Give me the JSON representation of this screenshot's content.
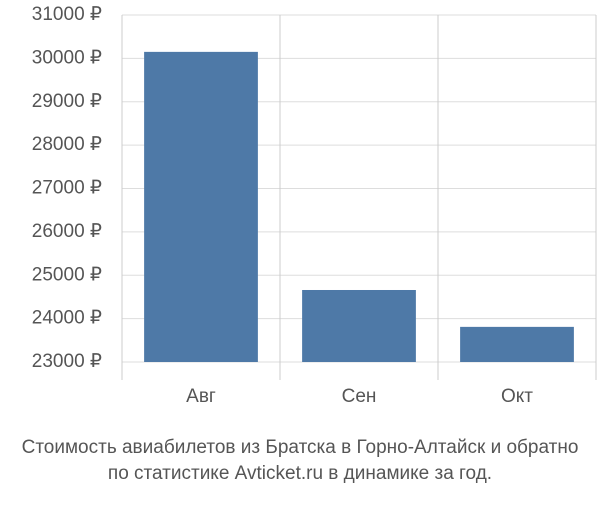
{
  "chart_data": {
    "type": "bar",
    "caption": [
      "Стоимость авиабилетов из Братска в Горно-Алтайск и обратно",
      "по статистике Avticket.ru в динамике за год."
    ],
    "categories": [
      "Авг",
      "Сен",
      "Окт"
    ],
    "values": [
      30150,
      24660,
      23810
    ],
    "color": "#4e79a7",
    "ylim": [
      23000,
      31000
    ],
    "yticks": [
      {
        "value": 23000,
        "label": "23000 ₽"
      },
      {
        "value": 24000,
        "label": "24000 ₽"
      },
      {
        "value": 25000,
        "label": "25000 ₽"
      },
      {
        "value": 26000,
        "label": "26000 ₽"
      },
      {
        "value": 27000,
        "label": "27000 ₽"
      },
      {
        "value": 28000,
        "label": "28000 ₽"
      },
      {
        "value": 29000,
        "label": "29000 ₽"
      },
      {
        "value": 30000,
        "label": "30000 ₽"
      },
      {
        "value": 31000,
        "label": "31000 ₽"
      }
    ],
    "grid": true
  }
}
